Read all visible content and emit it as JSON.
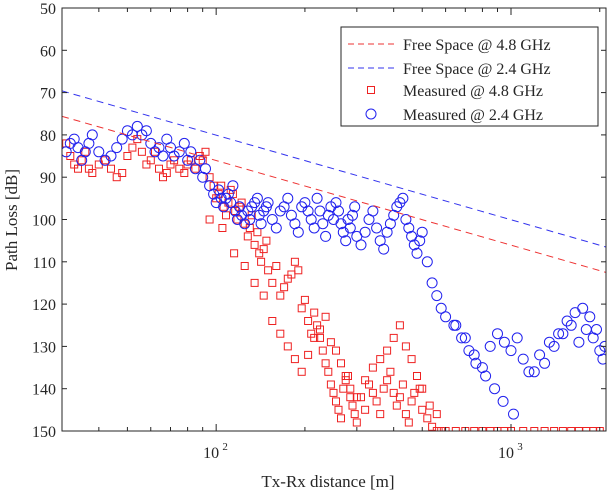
{
  "chart_data": {
    "type": "scatter",
    "xscale": "log",
    "xlim": [
      30,
      2100
    ],
    "ylim": [
      50,
      150
    ],
    "y_reversed": true,
    "xlabel": "Tx-Rx distance [m]",
    "ylabel": "Path Loss [dB]",
    "x_ticks": [
      {
        "value": 100,
        "base": "10",
        "exp": "2"
      },
      {
        "value": 1000,
        "base": "10",
        "exp": "3"
      }
    ],
    "y_ticks": [
      50,
      60,
      70,
      80,
      90,
      100,
      110,
      120,
      130,
      140,
      150
    ],
    "grid": false,
    "legend_position": "top-right",
    "series": [
      {
        "name": "Free Space @ 4.8 GHz",
        "kind": "line",
        "style": "dashed",
        "color": "#ee3333",
        "x": [
          30,
          2100
        ],
        "y": [
          75.6,
          112.5
        ]
      },
      {
        "name": "Free Space @ 2.4 GHz",
        "kind": "line",
        "style": "dashed",
        "color": "#3333ee",
        "x": [
          30,
          2100
        ],
        "y": [
          69.6,
          106.5
        ]
      },
      {
        "name": "Measured @ 4.8 GHz",
        "kind": "scatter",
        "marker": "square",
        "color": "#ee2222",
        "x": [
          31,
          32,
          33,
          34,
          35,
          36,
          37,
          38,
          40,
          42,
          44,
          46,
          48,
          50,
          52,
          54,
          56,
          58,
          60,
          62,
          64,
          66,
          68,
          70,
          72,
          75,
          78,
          80,
          82,
          85,
          88,
          90,
          92,
          95,
          98,
          100,
          102,
          104,
          106,
          108,
          110,
          112,
          114,
          116,
          118,
          120,
          122,
          125,
          128,
          130,
          132,
          135,
          138,
          140,
          142,
          145,
          148,
          150,
          155,
          160,
          165,
          170,
          175,
          180,
          185,
          190,
          195,
          200,
          205,
          210,
          215,
          220,
          225,
          230,
          235,
          240,
          245,
          250,
          255,
          260,
          265,
          270,
          275,
          280,
          285,
          290,
          295,
          300,
          310,
          320,
          330,
          340,
          350,
          360,
          370,
          380,
          390,
          400,
          410,
          420,
          430,
          440,
          450,
          460,
          470,
          480,
          490,
          500,
          520,
          540,
          560,
          580,
          600,
          650,
          700,
          750,
          800,
          850,
          900,
          950,
          1000,
          1100,
          1200,
          1300,
          1400,
          1500,
          1600,
          1700,
          1800,
          1900,
          2000,
          95,
          105,
          115,
          125,
          135,
          145,
          155,
          165,
          175,
          185,
          195,
          205,
          215,
          225,
          235,
          245,
          255,
          265,
          275,
          285,
          300,
          320,
          340,
          360,
          380,
          400,
          420,
          440,
          460,
          480,
          500,
          530,
          560
        ],
        "y": [
          82,
          85,
          87,
          88,
          86,
          84,
          88,
          89,
          87,
          86,
          88,
          90,
          89,
          85,
          83,
          81,
          84,
          87,
          86,
          84,
          88,
          90,
          89,
          87,
          86,
          88,
          89,
          87,
          86,
          88,
          85,
          86,
          84,
          90,
          92,
          95,
          94,
          92,
          97,
          99,
          96,
          93,
          94,
          98,
          100,
          97,
          96,
          101,
          104,
          102,
          99,
          106,
          103,
          108,
          110,
          107,
          105,
          112,
          115,
          111,
          118,
          116,
          114,
          113,
          110,
          112,
          121,
          119,
          124,
          127,
          122,
          125,
          128,
          131,
          134,
          136,
          139,
          141,
          143,
          145,
          147,
          140,
          138,
          137,
          142,
          144,
          146,
          148,
          142,
          145,
          139,
          141,
          143,
          146,
          140,
          138,
          136,
          141,
          144,
          142,
          139,
          146,
          148,
          143,
          141,
          137,
          140,
          145,
          147,
          149,
          150,
          150,
          150,
          150,
          150,
          150,
          150,
          150,
          150,
          150,
          150,
          150,
          150,
          150,
          150,
          150,
          150,
          150,
          150,
          150,
          150,
          100,
          102,
          108,
          111,
          115,
          118,
          124,
          127,
          130,
          133,
          136,
          132,
          128,
          126,
          123,
          129,
          131,
          134,
          137,
          140,
          142,
          138,
          135,
          133,
          131,
          128,
          125,
          130,
          133,
          137,
          140,
          144,
          146
        ]
      },
      {
        "name": "Measured @ 2.4 GHz",
        "kind": "scatter",
        "marker": "circle",
        "color": "#2222ee",
        "x": [
          31,
          32,
          33,
          34,
          35,
          36,
          37,
          38,
          40,
          42,
          44,
          46,
          48,
          50,
          52,
          54,
          56,
          58,
          60,
          62,
          64,
          66,
          68,
          70,
          72,
          75,
          78,
          80,
          82,
          85,
          88,
          90,
          92,
          95,
          98,
          100,
          102,
          104,
          106,
          108,
          110,
          112,
          114,
          116,
          118,
          120,
          122,
          125,
          128,
          130,
          132,
          135,
          138,
          140,
          142,
          145,
          148,
          150,
          155,
          160,
          165,
          170,
          175,
          180,
          185,
          190,
          195,
          200,
          205,
          210,
          215,
          220,
          225,
          230,
          235,
          240,
          245,
          250,
          255,
          260,
          265,
          270,
          275,
          280,
          285,
          290,
          295,
          300,
          310,
          320,
          330,
          340,
          350,
          360,
          370,
          380,
          390,
          400,
          410,
          420,
          430,
          440,
          450,
          460,
          470,
          480,
          490,
          500,
          520,
          540,
          560,
          580,
          600,
          650,
          700,
          750,
          800,
          850,
          900,
          950,
          1000,
          1050,
          1100,
          1200,
          1300,
          1400,
          1500,
          1600,
          1700,
          1800,
          1900,
          2000,
          2050,
          640,
          680,
          720,
          760,
          820,
          880,
          940,
          1020,
          1150,
          1250,
          1350,
          1450,
          1550,
          1650,
          1750,
          1850,
          1950,
          2080
        ],
        "y": [
          84,
          82,
          81,
          83,
          86,
          84,
          82,
          80,
          84,
          86,
          85,
          83,
          81,
          79,
          80,
          78,
          80,
          79,
          82,
          84,
          83,
          85,
          81,
          83,
          85,
          84,
          82,
          86,
          84,
          88,
          86,
          90,
          88,
          92,
          94,
          96,
          93,
          95,
          97,
          95,
          94,
          96,
          92,
          98,
          100,
          97,
          99,
          101,
          98,
          100,
          97,
          96,
          95,
          99,
          101,
          98,
          97,
          96,
          100,
          102,
          98,
          97,
          95,
          99,
          101,
          103,
          97,
          96,
          98,
          100,
          102,
          95,
          98,
          101,
          104,
          99,
          97,
          100,
          96,
          98,
          101,
          103,
          105,
          100,
          102,
          99,
          97,
          104,
          106,
          103,
          100,
          98,
          102,
          105,
          107,
          103,
          101,
          99,
          97,
          96,
          95,
          100,
          102,
          104,
          106,
          108,
          105,
          103,
          110,
          115,
          118,
          121,
          123,
          125,
          128,
          132,
          135,
          130,
          127,
          129,
          131,
          128,
          133,
          136,
          134,
          130,
          127,
          125,
          129,
          126,
          128,
          131,
          133,
          125,
          128,
          131,
          134,
          137,
          140,
          143,
          146,
          136,
          132,
          129,
          127,
          124,
          122,
          121,
          123,
          126,
          130
        ]
      }
    ]
  }
}
